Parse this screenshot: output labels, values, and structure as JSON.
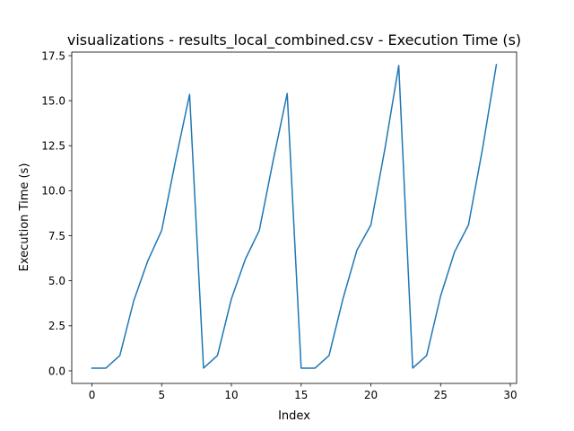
{
  "chart_data": {
    "type": "line",
    "title": "visualizations - results_local_combined.csv - Execution Time (s)",
    "xlabel": "Index",
    "ylabel": "Execution Time (s)",
    "xlim": [
      -1.45,
      30.45
    ],
    "ylim": [
      -0.7,
      17.7
    ],
    "x_ticks": [
      0,
      5,
      10,
      15,
      20,
      25,
      30
    ],
    "y_ticks": [
      0.0,
      2.5,
      5.0,
      7.5,
      10.0,
      12.5,
      15.0,
      17.5
    ],
    "x_tick_labels": [
      "0",
      "5",
      "10",
      "15",
      "20",
      "25",
      "30"
    ],
    "y_tick_labels": [
      "0.0",
      "2.5",
      "5.0",
      "7.5",
      "10.0",
      "12.5",
      "15.0",
      "17.5"
    ],
    "grid": false,
    "legend": "none",
    "series": [
      {
        "color": "#1f77b4",
        "x": [
          0,
          1,
          2,
          3,
          4,
          5,
          6,
          7,
          8,
          9,
          10,
          11,
          12,
          13,
          14,
          15,
          16,
          17,
          18,
          19,
          20,
          21,
          22,
          23,
          24,
          25,
          26,
          27,
          28,
          29
        ],
        "values": [
          0.15,
          0.15,
          0.85,
          3.9,
          6.1,
          7.8,
          11.7,
          15.35,
          0.15,
          0.85,
          4.0,
          6.2,
          7.8,
          11.7,
          15.4,
          0.15,
          0.15,
          0.85,
          4.0,
          6.7,
          8.1,
          12.3,
          16.95,
          0.15,
          0.85,
          4.15,
          6.6,
          8.1,
          12.3,
          17.0
        ]
      }
    ]
  }
}
